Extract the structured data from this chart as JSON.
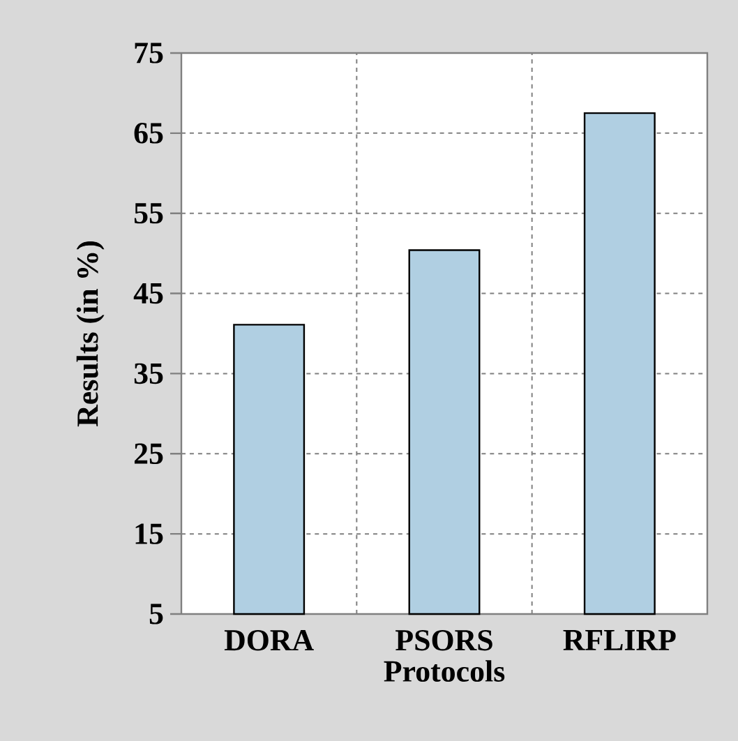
{
  "chart_data": {
    "type": "bar",
    "xlabel": "Protocols",
    "ylabel": "Results (in %)",
    "categories": [
      "DORA",
      "PSORS",
      "RFLIRP"
    ],
    "values": [
      41.1,
      50.4,
      67.5
    ],
    "color": "#b0cfe2",
    "ylim": [
      5,
      75
    ],
    "yticks": [
      5,
      15,
      25,
      35,
      45,
      55,
      65,
      75
    ],
    "grid": true
  }
}
